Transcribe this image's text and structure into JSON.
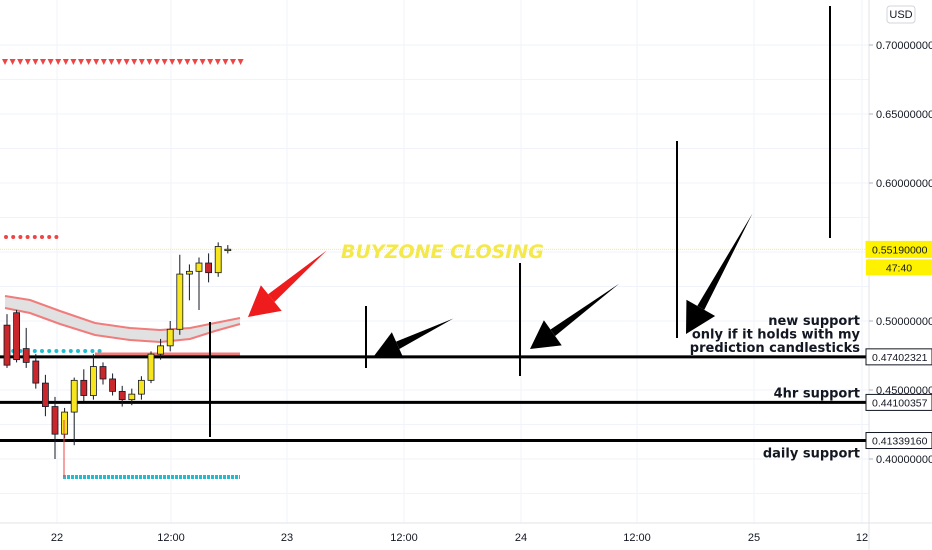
{
  "chart_data": {
    "type": "candlestick",
    "currency": "USD",
    "x_ticks": [
      "22",
      "12:00",
      "23",
      "12:00",
      "24",
      "12:00",
      "25",
      "12"
    ],
    "y_ticks": [
      "0.40000000",
      "0.45000000",
      "0.50000000",
      "0.55190000",
      "0.60000000",
      "0.65000000",
      "0.70000000"
    ],
    "ylim": [
      0.355,
      0.728
    ],
    "grid": true,
    "current_price": "0.55190000",
    "countdown": "47:40",
    "candles": [
      {
        "o": 0.497,
        "h": 0.505,
        "l": 0.466,
        "c": 0.468
      },
      {
        "o": 0.506,
        "h": 0.508,
        "l": 0.47,
        "c": 0.472
      },
      {
        "o": 0.48,
        "h": 0.495,
        "l": 0.466,
        "c": 0.47
      },
      {
        "o": 0.471,
        "h": 0.476,
        "l": 0.451,
        "c": 0.455
      },
      {
        "o": 0.455,
        "h": 0.461,
        "l": 0.431,
        "c": 0.438
      },
      {
        "o": 0.438,
        "h": 0.445,
        "l": 0.4,
        "c": 0.418
      },
      {
        "o": 0.418,
        "h": 0.437,
        "l": 0.415,
        "c": 0.434
      },
      {
        "o": 0.434,
        "h": 0.459,
        "l": 0.41,
        "c": 0.457
      },
      {
        "o": 0.457,
        "h": 0.465,
        "l": 0.442,
        "c": 0.446
      },
      {
        "o": 0.446,
        "h": 0.476,
        "l": 0.443,
        "c": 0.467
      },
      {
        "o": 0.467,
        "h": 0.47,
        "l": 0.454,
        "c": 0.458
      },
      {
        "o": 0.458,
        "h": 0.462,
        "l": 0.446,
        "c": 0.449
      },
      {
        "o": 0.449,
        "h": 0.453,
        "l": 0.438,
        "c": 0.443
      },
      {
        "o": 0.443,
        "h": 0.451,
        "l": 0.439,
        "c": 0.447
      },
      {
        "o": 0.447,
        "h": 0.46,
        "l": 0.443,
        "c": 0.457
      },
      {
        "o": 0.457,
        "h": 0.478,
        "l": 0.455,
        "c": 0.476
      },
      {
        "o": 0.476,
        "h": 0.487,
        "l": 0.472,
        "c": 0.482
      },
      {
        "o": 0.482,
        "h": 0.5,
        "l": 0.478,
        "c": 0.494
      },
      {
        "o": 0.494,
        "h": 0.548,
        "l": 0.49,
        "c": 0.534
      },
      {
        "o": 0.534,
        "h": 0.541,
        "l": 0.515,
        "c": 0.536
      },
      {
        "o": 0.536,
        "h": 0.546,
        "l": 0.508,
        "c": 0.542
      },
      {
        "o": 0.542,
        "h": 0.549,
        "l": 0.528,
        "c": 0.535
      },
      {
        "o": 0.535,
        "h": 0.557,
        "l": 0.532,
        "c": 0.554
      },
      {
        "o": 0.551,
        "h": 0.555,
        "l": 0.549,
        "c": 0.552
      }
    ],
    "levels": [
      {
        "price": 0.47402321,
        "tag": "0.47402321",
        "label": [
          "new support",
          "only if it holds with my",
          "prediction candlesticks"
        ]
      },
      {
        "price": 0.44100357,
        "tag": "0.44100357",
        "label": [
          "4hr support"
        ]
      },
      {
        "price": 0.4133916,
        "tag": "0.41339160",
        "label": [
          "daily support"
        ]
      }
    ],
    "annotations": {
      "buyzone": "BUYZONE CLOSING"
    },
    "colors": {
      "bull": "#f7e51d",
      "bear": "#c9272b",
      "buyzone_text": "#f5e84a",
      "arrow_red": "#ee1c1c",
      "dots_red": "#ef4444",
      "dots_cyan": "#1fbfd2",
      "band_fill": "#d9d9d9",
      "band_stroke": "#f07c7c",
      "current_tag": "#fff200"
    }
  }
}
